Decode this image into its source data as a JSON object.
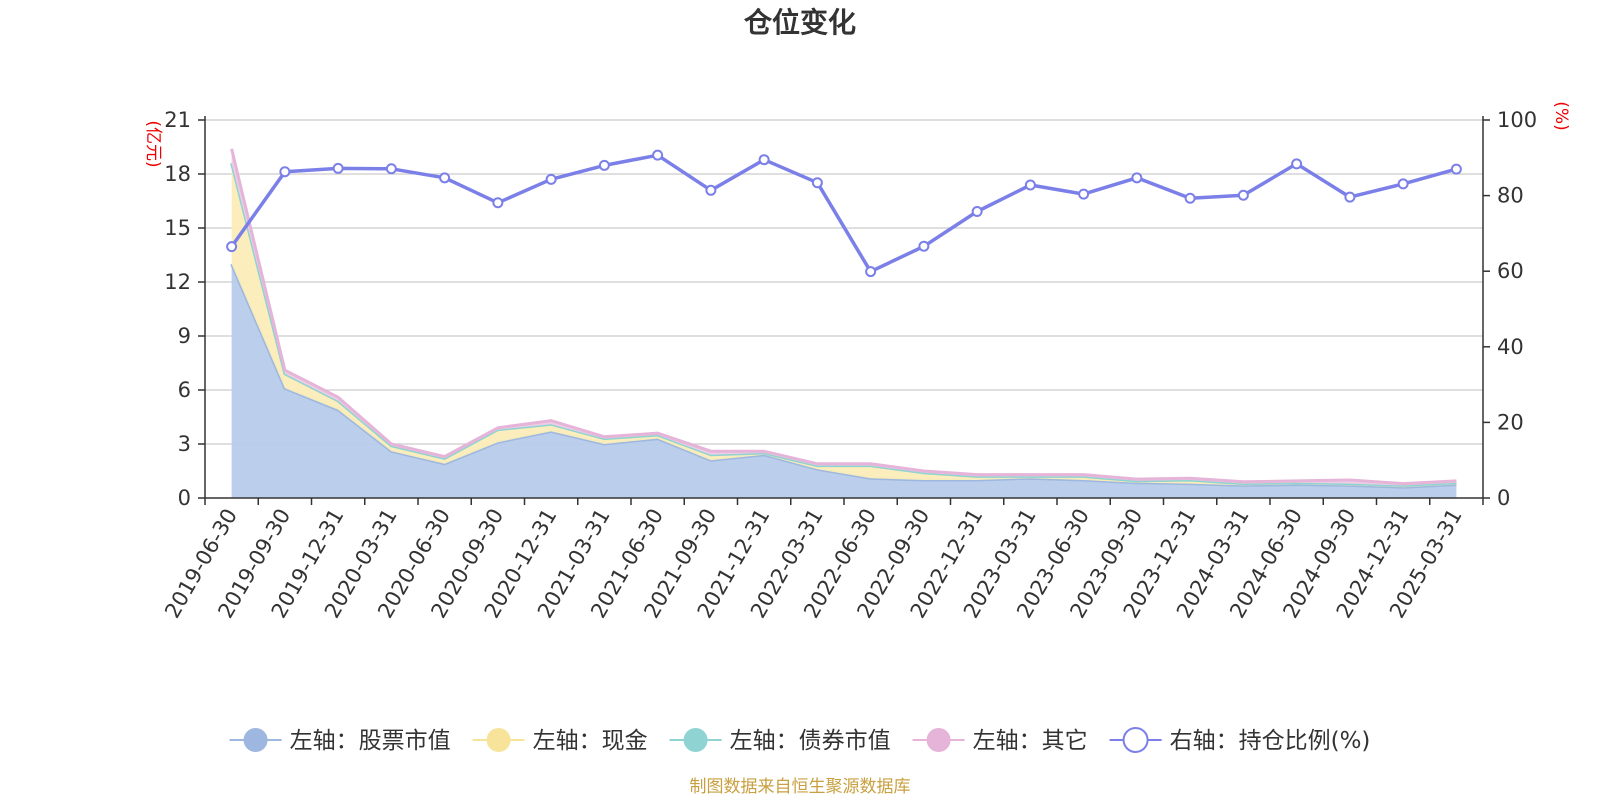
{
  "chart_data": {
    "type": "area",
    "title": "仓位变化",
    "source_note": "制图数据来自恒生聚源数据库",
    "left_axis_label": "(亿元)",
    "right_axis_label": "(%)",
    "left_ylim": [
      0,
      21
    ],
    "left_ticks": [
      "0",
      "3",
      "6",
      "9",
      "12",
      "15",
      "18",
      "21"
    ],
    "right_ylim": [
      0,
      100
    ],
    "right_ticks": [
      "0",
      "20",
      "40",
      "60",
      "80",
      "100"
    ],
    "categories": [
      "2019-06-30",
      "2019-09-30",
      "2019-12-31",
      "2020-03-31",
      "2020-06-30",
      "2020-09-30",
      "2020-12-31",
      "2021-03-31",
      "2021-06-30",
      "2021-09-30",
      "2021-12-31",
      "2022-03-31",
      "2022-06-30",
      "2022-09-30",
      "2022-12-31",
      "2023-03-31",
      "2023-06-30",
      "2023-09-30",
      "2023-12-31",
      "2024-03-31",
      "2024-06-30",
      "2024-09-30",
      "2024-12-31",
      "2025-03-31"
    ],
    "series": [
      {
        "name": "左轴：股票市值",
        "axis": "left",
        "color": "#9db7e0",
        "fill": "#b7cbea",
        "values": [
          13.0,
          6.1,
          4.9,
          2.6,
          1.9,
          3.1,
          3.7,
          3.0,
          3.3,
          2.1,
          2.4,
          1.6,
          1.1,
          1.0,
          1.0,
          1.1,
          1.0,
          0.85,
          0.8,
          0.7,
          0.75,
          0.7,
          0.6,
          0.75
        ]
      },
      {
        "name": "左轴：现金",
        "axis": "left",
        "color": "#f7e49a",
        "fill": "#fbedb8",
        "values": [
          5.6,
          0.8,
          0.5,
          0.3,
          0.3,
          0.7,
          0.4,
          0.3,
          0.2,
          0.3,
          0.1,
          0.2,
          0.7,
          0.4,
          0.2,
          0.1,
          0.2,
          0.1,
          0.2,
          0.1,
          0.1,
          0.1,
          0.1,
          0.1
        ]
      },
      {
        "name": "左轴：债券市值",
        "axis": "left",
        "color": "#8fd3d3",
        "fill": "#b9e6e6",
        "values": [
          0,
          0,
          0,
          0,
          0,
          0,
          0,
          0,
          0,
          0,
          0,
          0,
          0,
          0,
          0,
          0,
          0,
          0,
          0,
          0,
          0,
          0,
          0,
          0
        ]
      },
      {
        "name": "左轴：其它",
        "axis": "left",
        "color": "#e6b4d8",
        "fill": "#f0cde6",
        "values": [
          0.8,
          0.2,
          0.2,
          0.1,
          0.1,
          0.1,
          0.2,
          0.1,
          0.1,
          0.2,
          0.1,
          0.1,
          0.1,
          0.1,
          0.1,
          0.1,
          0.1,
          0.1,
          0.1,
          0.1,
          0.1,
          0.2,
          0.1,
          0.1
        ]
      },
      {
        "name": "右轴：持仓比例(%)",
        "axis": "right",
        "color": "#7b7fe8",
        "values": [
          66.5,
          86.3,
          87.2,
          87.1,
          84.7,
          78.1,
          84.3,
          88.0,
          90.7,
          81.4,
          89.5,
          83.4,
          59.9,
          66.6,
          75.8,
          82.8,
          80.4,
          84.7,
          79.3,
          80.1,
          88.4,
          79.6,
          83.1,
          87.0
        ]
      }
    ]
  },
  "colors": {
    "title": "#333333",
    "axis_label": "#ee0000",
    "source_note": "#c8a040",
    "grid": "#cccccc",
    "axis": "#333333"
  }
}
